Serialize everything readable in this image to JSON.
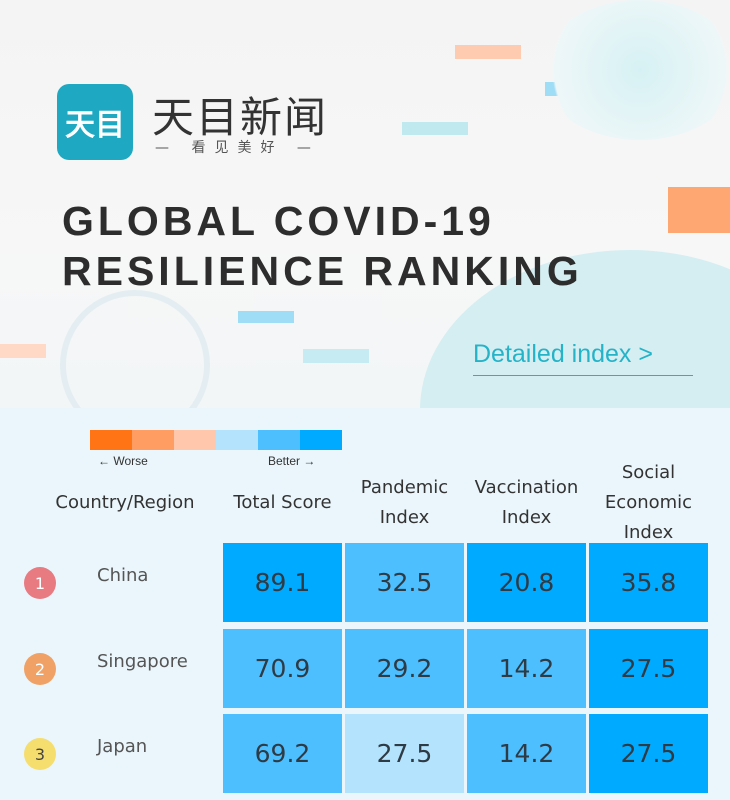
{
  "brand": {
    "logo_mark": "天目",
    "name": "天目新闻",
    "slogan": "— 看见美好 —",
    "color": "#1fa8c2"
  },
  "title_line1": "GLOBAL COVID-19",
  "title_line2": "RESILIENCE RANKING",
  "detail_link": "Detailed index >",
  "legend": {
    "colors": [
      "#ff7415",
      "#ff9d63",
      "#ffc8ad",
      "#b3e3fd",
      "#4dbfff",
      "#00aaff"
    ],
    "worse": "Worse",
    "better": "Better",
    "worse_arrow": "←",
    "better_arrow": "→"
  },
  "columns": [
    "Country/Region",
    "Total Score",
    "Pandemic Index",
    "Vaccination Index",
    "Social Economic Index"
  ],
  "rows": [
    {
      "rank": "1",
      "badge_color": "#e87a82",
      "country": "China",
      "values": [
        "89.1",
        "32.5",
        "20.8",
        "35.8"
      ],
      "levels": [
        6,
        5,
        6,
        6
      ]
    },
    {
      "rank": "2",
      "badge_color": "#f0a266",
      "country": "Singapore",
      "values": [
        "70.9",
        "29.2",
        "14.2",
        "27.5"
      ],
      "levels": [
        5,
        5,
        5,
        6
      ]
    },
    {
      "rank": "3",
      "badge_color": "#f5dd6e",
      "country": "Japan",
      "values": [
        "69.2",
        "27.5",
        "14.2",
        "27.5"
      ],
      "levels": [
        5,
        4,
        5,
        6
      ]
    }
  ]
}
